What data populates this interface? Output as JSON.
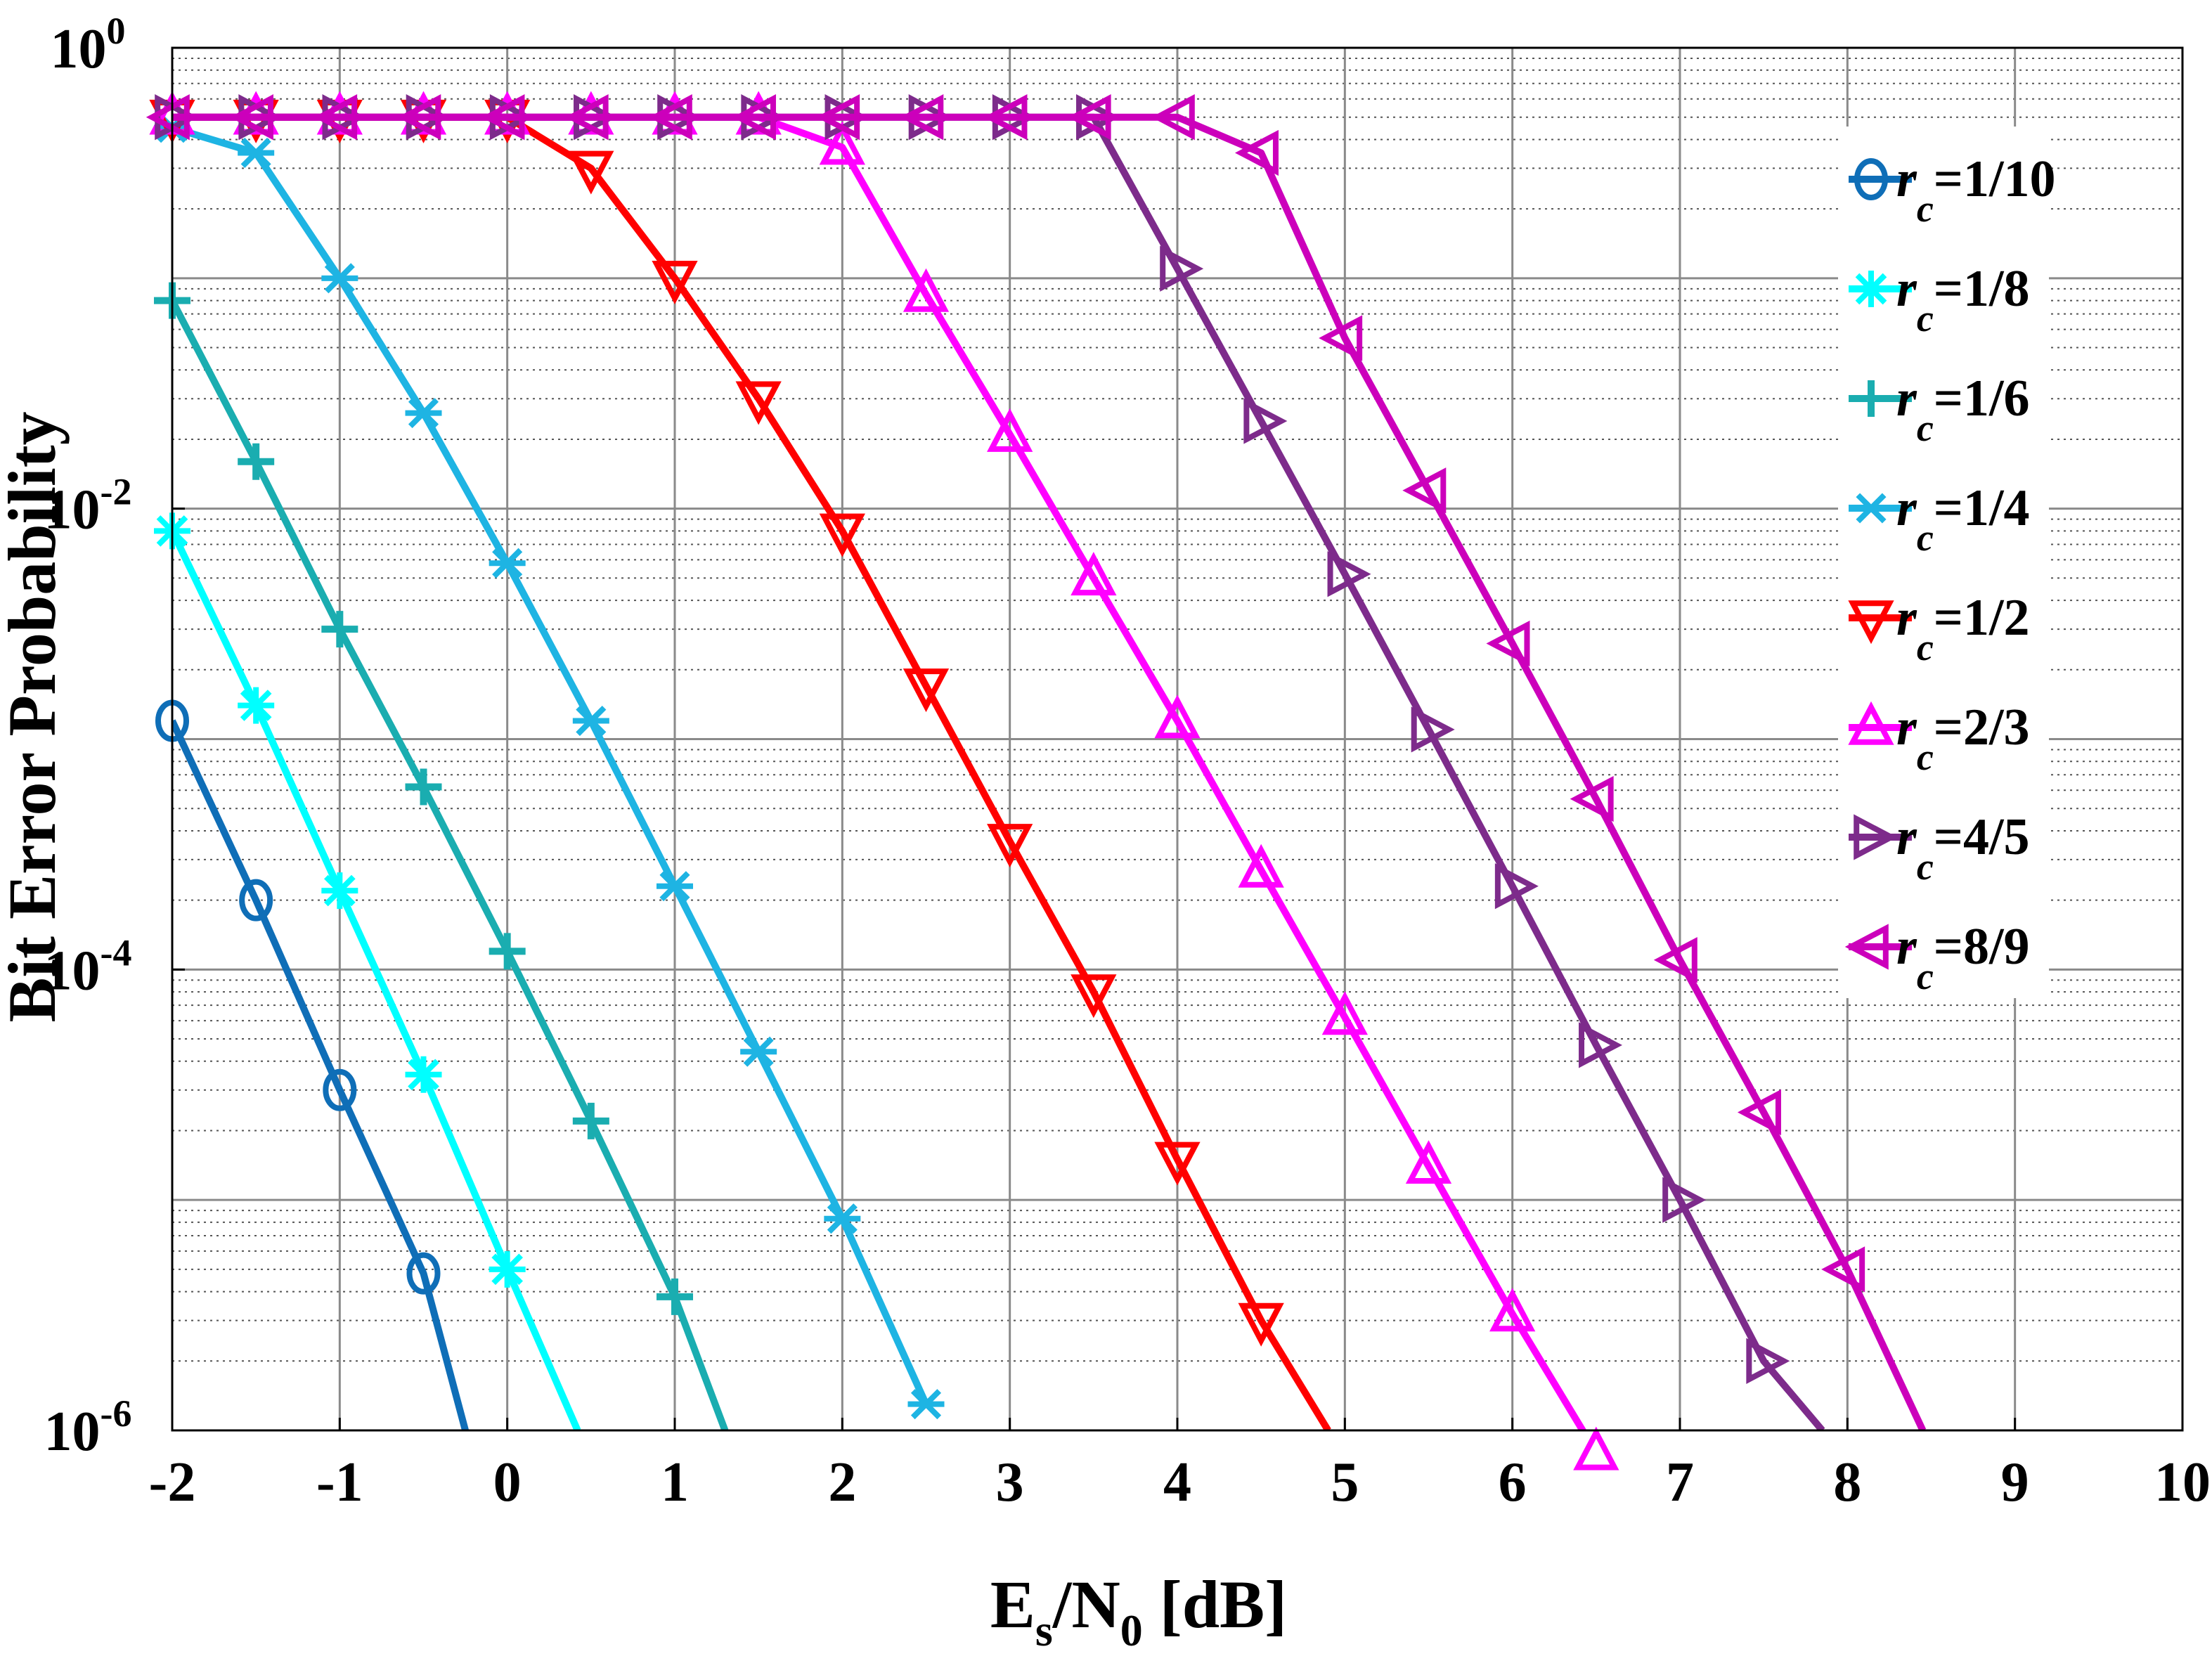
{
  "chart_data": {
    "type": "line",
    "title": "",
    "xlabel": {
      "main": "E",
      "sub1": "s",
      "mid": "/N",
      "sub2": "0",
      "end": " [dB]"
    },
    "ylabel": "Bit Error Probability",
    "xlim": [
      -2,
      10
    ],
    "ylim": [
      1e-06,
      1
    ],
    "yscale": "log",
    "grid": true,
    "legend_position": "right",
    "x_ticks": [
      "-2",
      "-1",
      "0",
      "1",
      "2",
      "3",
      "4",
      "5",
      "6",
      "7",
      "8",
      "9",
      "10"
    ],
    "y_ticks": [
      {
        "base": "10",
        "exp": "0",
        "value": 1
      },
      {
        "base": "10",
        "exp": "-2",
        "value": 0.01
      },
      {
        "base": "10",
        "exp": "-4",
        "value": 0.0001
      },
      {
        "base": "10",
        "exp": "-6",
        "value": 1e-06
      }
    ],
    "series": [
      {
        "name": "r_c=1/10",
        "legend_prefix": "r",
        "legend_sub": "c",
        "legend_value": "=1/10",
        "color": "#0f6eb7",
        "marker": "circle",
        "x": [
          -2,
          -1.5,
          -1,
          -0.5
        ],
        "y": [
          0.0012,
          0.0002,
          3e-05,
          4.8e-06
        ],
        "tail": [
          -0.25,
          1e-06
        ]
      },
      {
        "name": "r_c=1/8",
        "legend_prefix": "r",
        "legend_sub": "c",
        "legend_value": "=1/8",
        "color": "#00ffff",
        "marker": "star",
        "x": [
          -2,
          -1.5,
          -1,
          -0.5,
          0
        ],
        "y": [
          0.008,
          0.0014,
          0.00022,
          3.5e-05,
          5e-06
        ],
        "tail": [
          0.42,
          1e-06
        ]
      },
      {
        "name": "r_c=1/6",
        "legend_prefix": "r",
        "legend_sub": "c",
        "legend_value": "=1/6",
        "color": "#1aadb0",
        "marker": "plus",
        "x": [
          -2,
          -1.5,
          -1,
          -0.5,
          0,
          0.5,
          1
        ],
        "y": [
          0.08,
          0.016,
          0.003,
          0.00062,
          0.00012,
          2.2e-05,
          3.8e-06
        ],
        "tail": [
          1.3,
          1e-06
        ]
      },
      {
        "name": "r_c=1/4",
        "legend_prefix": "r",
        "legend_sub": "c",
        "legend_value": "=1/4",
        "color": "#1eb4e3",
        "marker": "asterisk",
        "x": [
          -2,
          -1.5,
          -1,
          -0.5,
          0,
          0.5,
          1,
          1.5,
          2,
          2.5
        ],
        "y": [
          0.45,
          0.35,
          0.1,
          0.026,
          0.0058,
          0.0012,
          0.00023,
          4.4e-05,
          8.3e-06,
          1.3e-06
        ]
      },
      {
        "name": "r_c=1/2",
        "legend_prefix": "r",
        "legend_sub": "c",
        "legend_value": "=1/2",
        "color": "#ff0000",
        "marker": "triangle-down",
        "x": [
          -2,
          -1.5,
          -1,
          -0.5,
          0,
          0.5,
          1,
          1.5,
          2,
          2.5,
          3,
          3.5,
          4,
          4.5
        ],
        "y": [
          0.5,
          0.5,
          0.5,
          0.5,
          0.5,
          0.3,
          0.1,
          0.03,
          0.008,
          0.0017,
          0.00036,
          8e-05,
          1.5e-05,
          3e-06
        ],
        "tail": [
          4.9,
          1e-06
        ]
      },
      {
        "name": "r_c=2/3",
        "legend_prefix": "r",
        "legend_sub": "c",
        "legend_value": "=2/3",
        "color": "#ff00ff",
        "marker": "triangle-up",
        "x": [
          -2,
          -1.5,
          -1,
          -0.5,
          0,
          0.5,
          1,
          1.5,
          2,
          2.5,
          3,
          3.5,
          4,
          4.5,
          5,
          5.5,
          6,
          6.5
        ],
        "y": [
          0.5,
          0.5,
          0.5,
          0.5,
          0.5,
          0.5,
          0.5,
          0.5,
          0.37,
          0.085,
          0.021,
          0.005,
          0.0012,
          0.00027,
          6.2e-05,
          1.4e-05,
          3.2e-06,
          8e-07
        ]
      },
      {
        "name": "r_c=4/5",
        "legend_prefix": "r",
        "legend_sub": "c",
        "legend_value": "=4/5",
        "color": "#7d2b8b",
        "marker": "triangle-right",
        "x": [
          -2,
          -1.5,
          -1,
          -0.5,
          0,
          0.5,
          1,
          1.5,
          2,
          2.5,
          3,
          3.5,
          4,
          4.5,
          5,
          5.5,
          6,
          6.5,
          7,
          7.5
        ],
        "y": [
          0.5,
          0.5,
          0.5,
          0.5,
          0.5,
          0.5,
          0.5,
          0.5,
          0.5,
          0.5,
          0.5,
          0.5,
          0.11,
          0.024,
          0.0052,
          0.0011,
          0.00023,
          4.7e-05,
          1e-05,
          2e-06
        ],
        "tail": [
          7.85,
          1e-06
        ]
      },
      {
        "name": "r_c=8/9",
        "legend_prefix": "r",
        "legend_sub": "c",
        "legend_value": "=8/9",
        "color": "#cc00bb",
        "marker": "triangle-left",
        "x": [
          -2,
          -1.5,
          -1,
          -0.5,
          0,
          0.5,
          1,
          1.5,
          2,
          2.5,
          3,
          3.5,
          4,
          4.5,
          5,
          5.5,
          6,
          6.5,
          7,
          7.5,
          8
        ],
        "y": [
          0.5,
          0.5,
          0.5,
          0.5,
          0.5,
          0.5,
          0.5,
          0.5,
          0.5,
          0.5,
          0.5,
          0.5,
          0.5,
          0.35,
          0.055,
          0.012,
          0.0026,
          0.00055,
          0.00011,
          2.4e-05,
          5e-06
        ],
        "tail": [
          8.45,
          1e-06
        ]
      }
    ]
  }
}
